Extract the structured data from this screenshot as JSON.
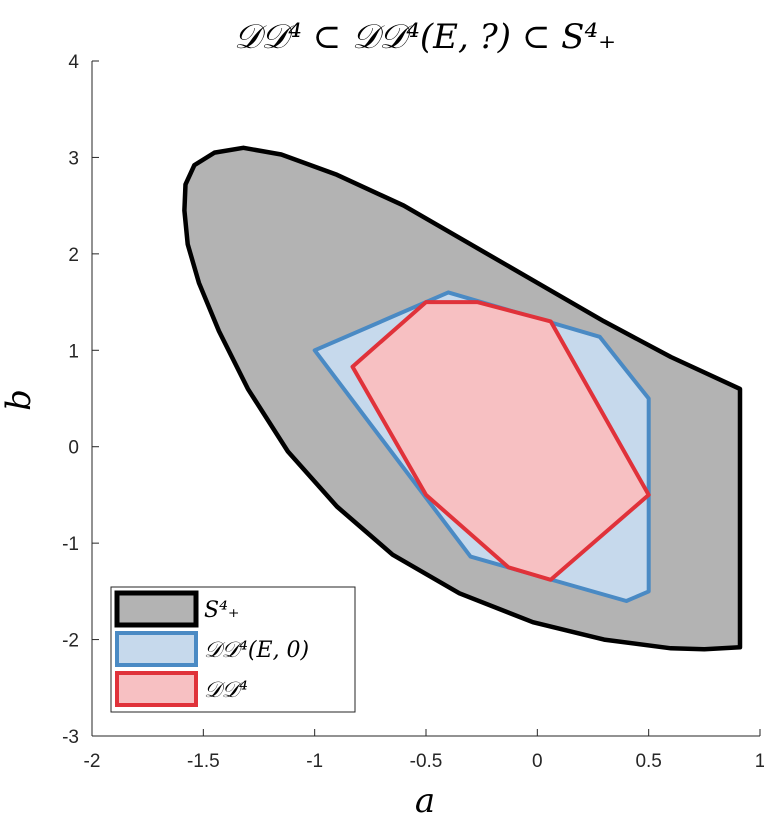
{
  "chart_data": {
    "type": "area",
    "title": "𝒟𝒟⁴ ⊂ 𝒟𝒟⁴(E, ?) ⊂ S⁴₊",
    "xlabel": "a",
    "ylabel": "b",
    "xlim": [
      -2,
      1
    ],
    "ylim": [
      -3,
      4
    ],
    "xticks": [
      "-2",
      "-1.5",
      "-1",
      "-0.5",
      "0",
      "0.5",
      "1"
    ],
    "yticks": [
      "-3",
      "-2",
      "-1",
      "0",
      "1",
      "2",
      "3",
      "4"
    ],
    "grid": false,
    "legend_position": "bottom-left",
    "series": [
      {
        "name": "S⁴₊",
        "fill": "#b3b3b3",
        "stroke": "#000000",
        "points": [
          [
            -1.32,
            3.1
          ],
          [
            -1.45,
            3.05
          ],
          [
            -1.54,
            2.92
          ],
          [
            -1.58,
            2.72
          ],
          [
            -1.585,
            2.45
          ],
          [
            -1.57,
            2.1
          ],
          [
            -1.52,
            1.7
          ],
          [
            -1.43,
            1.2
          ],
          [
            -1.3,
            0.6
          ],
          [
            -1.12,
            -0.05
          ],
          [
            -0.9,
            -0.62
          ],
          [
            -0.65,
            -1.12
          ],
          [
            -0.35,
            -1.52
          ],
          [
            -0.02,
            -1.82
          ],
          [
            0.3,
            -2.0
          ],
          [
            0.6,
            -2.09
          ],
          [
            0.75,
            -2.1
          ],
          [
            0.91,
            -2.08
          ],
          [
            0.91,
            0.6
          ],
          [
            0.6,
            0.93
          ],
          [
            0.3,
            1.3
          ],
          [
            0.0,
            1.7
          ],
          [
            -0.3,
            2.1
          ],
          [
            -0.6,
            2.5
          ],
          [
            -0.9,
            2.82
          ],
          [
            -1.15,
            3.03
          ],
          [
            -1.32,
            3.1
          ]
        ]
      },
      {
        "name": "𝒟𝒟⁴(E, 0)",
        "fill": "#c6d9ec",
        "stroke": "#4a8ac4",
        "points": [
          [
            -1.0,
            1.0
          ],
          [
            -0.4,
            1.6
          ],
          [
            0.28,
            1.14
          ],
          [
            0.4,
            0.79
          ],
          [
            0.5,
            0.5
          ],
          [
            0.5,
            -1.5
          ],
          [
            0.4,
            -1.6
          ],
          [
            -0.3,
            -1.14
          ],
          [
            -1.0,
            1.0
          ]
        ]
      },
      {
        "name": "𝒟𝒟⁴",
        "fill": "#f7c0c2",
        "stroke": "#e0323a",
        "points": [
          [
            -0.83,
            0.83
          ],
          [
            -0.5,
            1.5
          ],
          [
            -0.27,
            1.5
          ],
          [
            0.06,
            1.3
          ],
          [
            0.5,
            -0.5
          ],
          [
            0.06,
            -1.38
          ],
          [
            -0.13,
            -1.25
          ],
          [
            -0.5,
            -0.5
          ],
          [
            -0.83,
            0.83
          ]
        ]
      }
    ]
  }
}
